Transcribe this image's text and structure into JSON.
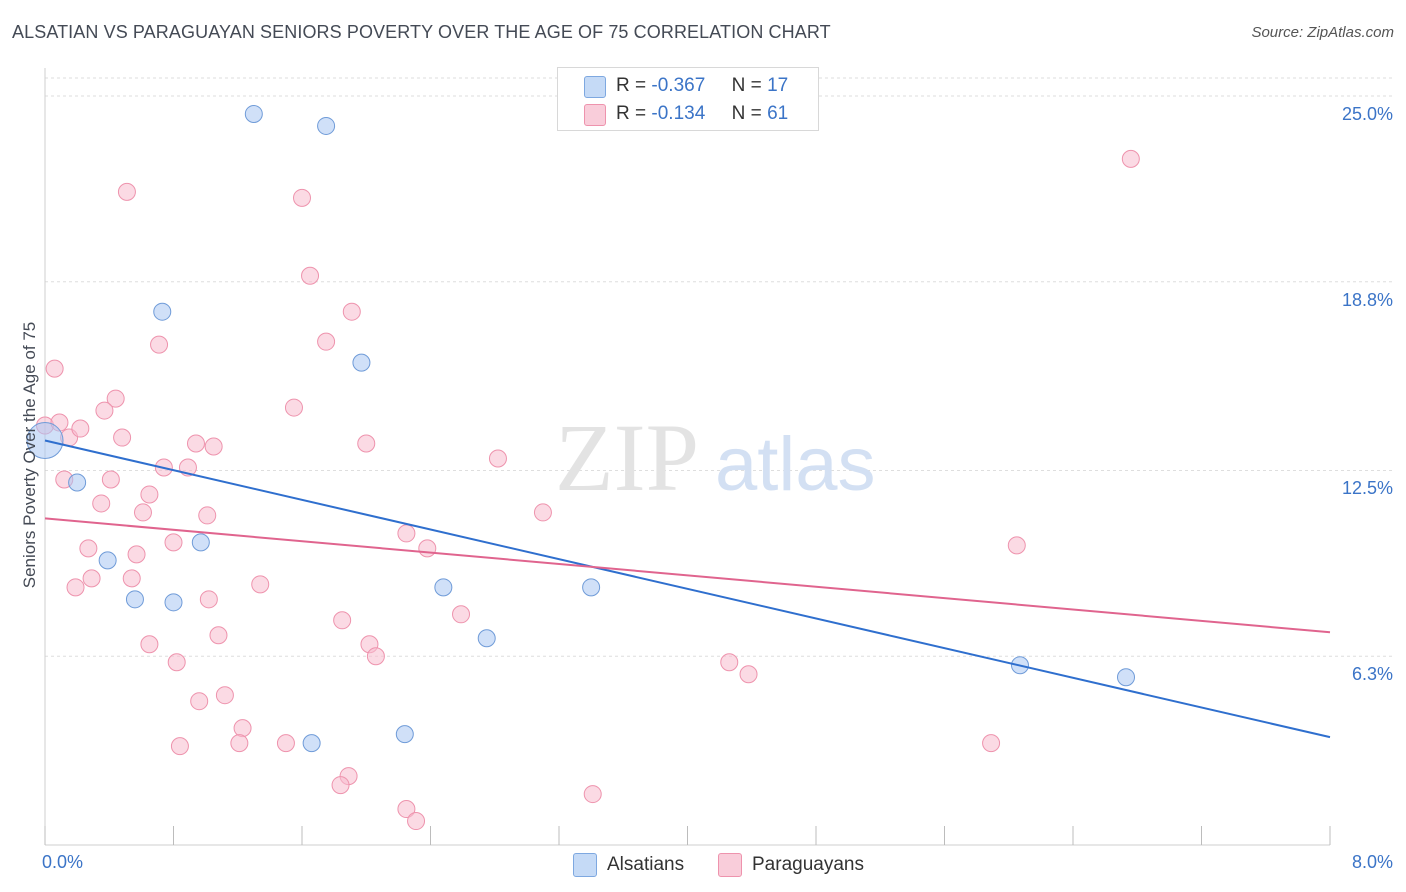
{
  "header": {
    "title": "ALSATIAN VS PARAGUAYAN SENIORS POVERTY OVER THE AGE OF 75 CORRELATION CHART",
    "source": "Source: ZipAtlas.com"
  },
  "watermark": {
    "zip": "ZIP",
    "atlas": "atlas"
  },
  "legend": {
    "rows": [
      {
        "r_label": "R =",
        "r_value": "-0.367",
        "n_label": "N =",
        "n_value": "17",
        "color": "#a9c7f2",
        "border": "#7ea8e0"
      },
      {
        "r_label": "R =",
        "r_value": "-0.134",
        "n_label": "N =",
        "n_value": "61",
        "color": "#f7bccd",
        "border": "#ee93ad"
      }
    ]
  },
  "bottom_legend": {
    "series1": "Alsatians",
    "series2": "Paraguayans"
  },
  "chart_data": {
    "type": "scatter",
    "xlabel": "",
    "ylabel": "Seniors Poverty Over the Age of 75",
    "xlim": [
      0.0,
      8.0
    ],
    "ylim": [
      0.0,
      25.6
    ],
    "x_tick_labels": [
      "0.0%",
      "8.0%"
    ],
    "y_ticks": [
      6.3,
      12.5,
      18.8,
      25.0
    ],
    "y_tick_labels": [
      "6.3%",
      "12.5%",
      "18.8%",
      "25.0%"
    ],
    "grid": true,
    "series": [
      {
        "name": "Alsatians",
        "color": "#a9c7f2",
        "edge": "#6f9bd8",
        "line_color": "#2f6fce",
        "trend": {
          "x0": 0.0,
          "y0": 13.5,
          "x1": 8.0,
          "y1": 3.6
        },
        "points": [
          {
            "x": 0.0,
            "y": 13.5,
            "big": true
          },
          {
            "x": 1.3,
            "y": 24.4
          },
          {
            "x": 1.75,
            "y": 24.0
          },
          {
            "x": 0.73,
            "y": 17.8
          },
          {
            "x": 1.97,
            "y": 16.1
          },
          {
            "x": 0.2,
            "y": 12.1
          },
          {
            "x": 0.97,
            "y": 10.1
          },
          {
            "x": 0.39,
            "y": 9.5
          },
          {
            "x": 0.56,
            "y": 8.2
          },
          {
            "x": 0.8,
            "y": 8.1
          },
          {
            "x": 2.48,
            "y": 8.6
          },
          {
            "x": 3.4,
            "y": 8.6
          },
          {
            "x": 2.75,
            "y": 6.9
          },
          {
            "x": 6.07,
            "y": 6.0
          },
          {
            "x": 6.73,
            "y": 5.6
          },
          {
            "x": 1.66,
            "y": 3.4
          },
          {
            "x": 2.24,
            "y": 3.7
          }
        ]
      },
      {
        "name": "Paraguayans",
        "color": "#f7bccd",
        "edge": "#ee93ad",
        "line_color": "#e0648e",
        "trend": {
          "x0": 0.0,
          "y0": 10.9,
          "x1": 8.0,
          "y1": 7.1
        },
        "points": [
          {
            "x": 0.06,
            "y": 15.9
          },
          {
            "x": 0.0,
            "y": 14.0
          },
          {
            "x": 0.09,
            "y": 14.1
          },
          {
            "x": 0.15,
            "y": 13.6
          },
          {
            "x": 0.22,
            "y": 13.9
          },
          {
            "x": 0.12,
            "y": 12.2
          },
          {
            "x": 0.44,
            "y": 14.9
          },
          {
            "x": 0.37,
            "y": 14.5
          },
          {
            "x": 0.48,
            "y": 13.6
          },
          {
            "x": 0.51,
            "y": 21.8
          },
          {
            "x": 1.6,
            "y": 21.6
          },
          {
            "x": 1.65,
            "y": 19.0
          },
          {
            "x": 1.91,
            "y": 17.8
          },
          {
            "x": 0.71,
            "y": 16.7
          },
          {
            "x": 1.75,
            "y": 16.8
          },
          {
            "x": 1.55,
            "y": 14.6
          },
          {
            "x": 0.94,
            "y": 13.4
          },
          {
            "x": 1.05,
            "y": 13.3
          },
          {
            "x": 2.0,
            "y": 13.4
          },
          {
            "x": 2.82,
            "y": 12.9
          },
          {
            "x": 0.74,
            "y": 12.6
          },
          {
            "x": 0.89,
            "y": 12.6
          },
          {
            "x": 0.41,
            "y": 12.2
          },
          {
            "x": 0.65,
            "y": 11.7
          },
          {
            "x": 0.35,
            "y": 11.4
          },
          {
            "x": 0.61,
            "y": 11.1
          },
          {
            "x": 1.01,
            "y": 11.0
          },
          {
            "x": 3.1,
            "y": 11.1
          },
          {
            "x": 2.25,
            "y": 10.4
          },
          {
            "x": 0.8,
            "y": 10.1
          },
          {
            "x": 0.27,
            "y": 9.9
          },
          {
            "x": 0.57,
            "y": 9.7
          },
          {
            "x": 2.38,
            "y": 9.9
          },
          {
            "x": 6.05,
            "y": 10.0
          },
          {
            "x": 0.29,
            "y": 8.9
          },
          {
            "x": 0.54,
            "y": 8.9
          },
          {
            "x": 0.19,
            "y": 8.6
          },
          {
            "x": 1.34,
            "y": 8.7
          },
          {
            "x": 1.02,
            "y": 8.2
          },
          {
            "x": 2.59,
            "y": 7.7
          },
          {
            "x": 1.85,
            "y": 7.5
          },
          {
            "x": 1.08,
            "y": 7.0
          },
          {
            "x": 0.65,
            "y": 6.7
          },
          {
            "x": 2.02,
            "y": 6.7
          },
          {
            "x": 2.06,
            "y": 6.3
          },
          {
            "x": 0.82,
            "y": 6.1
          },
          {
            "x": 4.26,
            "y": 6.1
          },
          {
            "x": 4.38,
            "y": 5.7
          },
          {
            "x": 1.12,
            "y": 5.0
          },
          {
            "x": 0.96,
            "y": 4.8
          },
          {
            "x": 1.23,
            "y": 3.9
          },
          {
            "x": 0.84,
            "y": 3.3
          },
          {
            "x": 1.21,
            "y": 3.4
          },
          {
            "x": 1.5,
            "y": 3.4
          },
          {
            "x": 5.89,
            "y": 3.4
          },
          {
            "x": 1.89,
            "y": 2.3
          },
          {
            "x": 1.84,
            "y": 2.0
          },
          {
            "x": 3.41,
            "y": 1.7
          },
          {
            "x": 2.25,
            "y": 1.2
          },
          {
            "x": 2.31,
            "y": 0.8
          },
          {
            "x": 6.76,
            "y": 22.9
          }
        ]
      }
    ]
  }
}
